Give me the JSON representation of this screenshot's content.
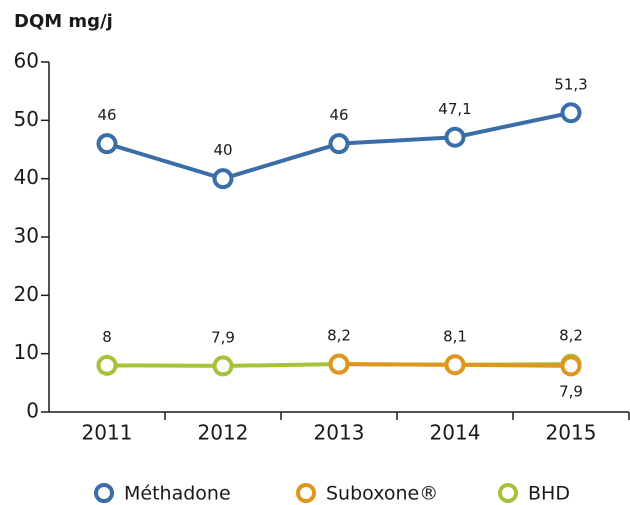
{
  "chart_data": {
    "type": "line",
    "title": "DQM mg/j",
    "categories": [
      "2011",
      "2012",
      "2013",
      "2014",
      "2015"
    ],
    "series": [
      {
        "name": "Méthadone",
        "color": "#3a6ea8",
        "values": [
          46,
          40,
          46,
          47.1,
          51.3
        ],
        "value_labels": [
          "46",
          "40",
          "46",
          "47,1",
          "51,3"
        ]
      },
      {
        "name": "BHD",
        "color": "#a4c23a",
        "values": [
          8,
          7.9,
          8.2,
          8.1,
          8.2
        ],
        "value_labels": [
          "8",
          "7,9",
          "8,2",
          "8,1",
          "8,2"
        ]
      },
      {
        "name": "Suboxone®",
        "color": "#e0961e",
        "values": [
          null,
          null,
          8.2,
          8.1,
          7.9
        ],
        "value_labels": [
          null,
          null,
          null,
          null,
          "7,9"
        ]
      }
    ],
    "legend_order": [
      0,
      2,
      1
    ],
    "ylim": [
      0,
      60
    ],
    "yticks": [
      0,
      10,
      20,
      30,
      40,
      50,
      60
    ]
  }
}
